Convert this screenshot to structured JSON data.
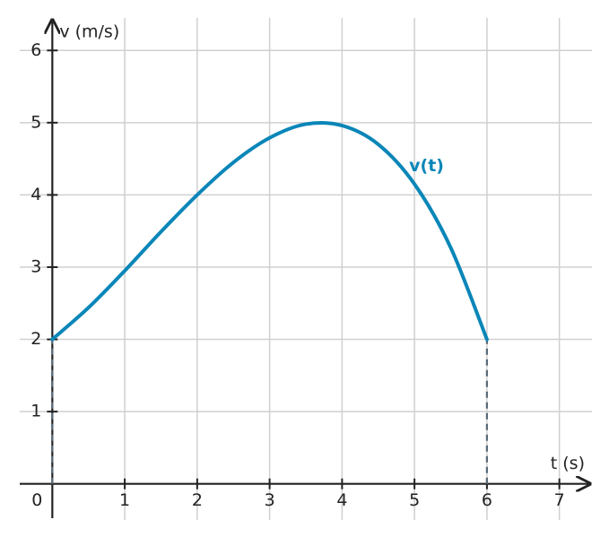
{
  "chart_data": {
    "type": "line",
    "x_label": "t (s)",
    "y_label": "v (m/s)",
    "x": [
      0,
      0.5,
      1,
      1.5,
      2,
      2.5,
      3,
      3.5,
      4,
      4.5,
      5,
      5.5,
      6
    ],
    "series": [
      {
        "name": "v(t)",
        "color": "#0a86b8",
        "values": [
          2,
          2.44,
          2.95,
          3.49,
          4.0,
          4.45,
          4.79,
          4.98,
          4.96,
          4.7,
          4.15,
          3.27,
          2
        ]
      }
    ],
    "xlim": [
      -0.45,
      7.45
    ],
    "ylim": [
      -0.5,
      6.45
    ],
    "xticks": [
      0,
      1,
      2,
      3,
      4,
      5,
      6,
      7
    ],
    "yticks": [
      1,
      2,
      3,
      4,
      5,
      6
    ],
    "grid": true,
    "drop_lines": true
  }
}
